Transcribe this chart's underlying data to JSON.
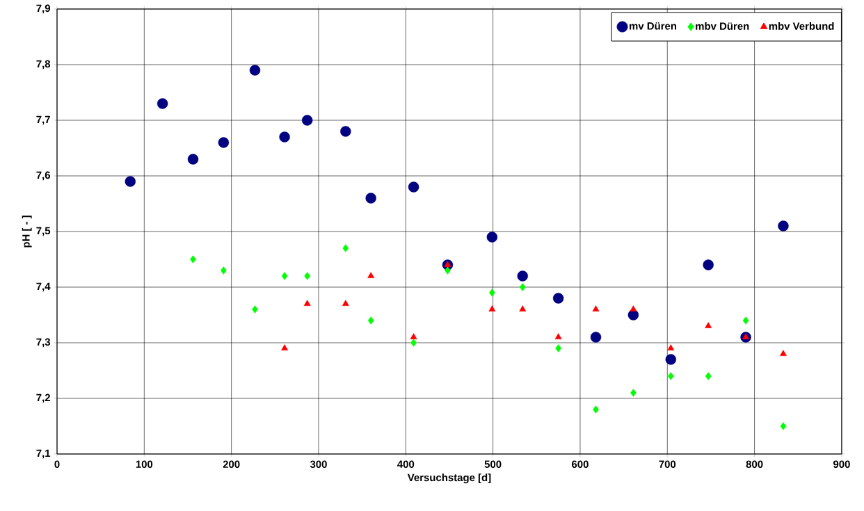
{
  "chart_data": {
    "type": "scatter",
    "xlabel": "Versuchstage [d]",
    "ylabel": "pH [ - ]",
    "xlim": [
      0,
      900
    ],
    "xticks": [
      0,
      100,
      200,
      300,
      400,
      500,
      600,
      700,
      800,
      900
    ],
    "ylim": [
      7.1,
      7.9
    ],
    "yticks": [
      {
        "value": 7.1,
        "label": "7,1"
      },
      {
        "value": 7.2,
        "label": "7,2"
      },
      {
        "value": 7.3,
        "label": "7,3"
      },
      {
        "value": 7.4,
        "label": "7,4"
      },
      {
        "value": 7.5,
        "label": "7,5"
      },
      {
        "value": 7.6,
        "label": "7,6"
      },
      {
        "value": 7.7,
        "label": "7,7"
      },
      {
        "value": 7.8,
        "label": "7,8"
      },
      {
        "value": 7.9,
        "label": "7,9"
      }
    ],
    "grid": true,
    "legend": "top right",
    "series": [
      {
        "name": "mv Düren",
        "color": "#000080",
        "marker": "circle",
        "x": [
          84,
          121,
          156,
          191,
          227,
          261,
          287,
          331,
          360,
          409,
          448,
          499,
          534,
          575,
          618,
          661,
          704,
          747,
          790,
          833
        ],
        "values": [
          7.59,
          7.73,
          7.63,
          7.66,
          7.79,
          7.67,
          7.7,
          7.68,
          7.56,
          7.58,
          7.44,
          7.49,
          7.42,
          7.38,
          7.31,
          7.35,
          7.27,
          7.44,
          7.31,
          7.51
        ]
      },
      {
        "name": "mbv Düren",
        "color": "#00ff00",
        "marker": "diamond",
        "x": [
          156,
          191,
          227,
          261,
          287,
          331,
          360,
          409,
          448,
          499,
          534,
          575,
          618,
          661,
          704,
          747,
          790,
          833
        ],
        "values": [
          7.45,
          7.43,
          7.36,
          7.42,
          7.42,
          7.47,
          7.34,
          7.3,
          7.43,
          7.39,
          7.4,
          7.29,
          7.18,
          7.21,
          7.24,
          7.24,
          7.34,
          7.15
        ]
      },
      {
        "name": "mbv Verbund",
        "color": "#ff0000",
        "marker": "triangle",
        "x": [
          261,
          287,
          331,
          360,
          409,
          448,
          499,
          534,
          575,
          618,
          661,
          704,
          747,
          790,
          833
        ],
        "values": [
          7.29,
          7.37,
          7.37,
          7.42,
          7.31,
          7.44,
          7.36,
          7.36,
          7.31,
          7.36,
          7.36,
          7.29,
          7.33,
          7.31,
          7.28
        ]
      }
    ]
  }
}
